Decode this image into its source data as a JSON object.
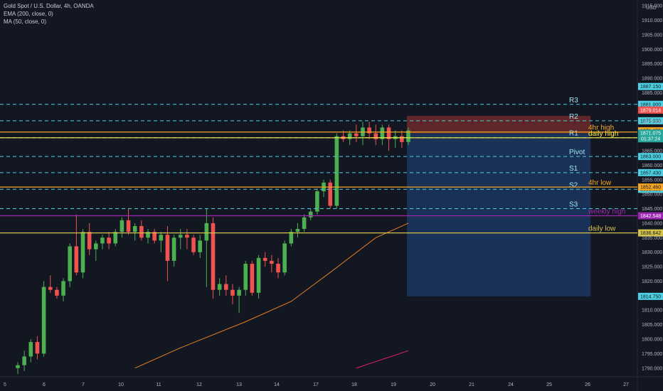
{
  "header": {
    "symbol_line": "Gold Spot / U.S. Dollar, 4h, OANDA",
    "indicator_1": "EMA (200, close, 0)",
    "indicator_2": "MA (50, close, 0)"
  },
  "colors": {
    "background": "#131722",
    "bull": "#26a69a",
    "bull_body": "#4caf50",
    "bear": "#ef5350",
    "pivot_dashed": "#4dd0e1",
    "orange": "#f5a623",
    "yellow": "#ffeb3b",
    "purple": "#9c27b0",
    "ema": "#e67e22",
    "ma": "#e91e63",
    "short_stop": "#7b2d2d",
    "short_target": "#1e3a66"
  },
  "chart_data": {
    "type": "candlestick",
    "title": "Gold Spot / U.S. Dollar, 4h, OANDA",
    "ylim": [
      1787,
      1917
    ],
    "y_ticks": [
      1790,
      1795,
      1800,
      1805,
      1810,
      1815,
      1820,
      1825,
      1830,
      1835,
      1840,
      1845,
      1850,
      1855,
      1860,
      1865,
      1870,
      1875,
      1880,
      1885,
      1890,
      1895,
      1900,
      1905,
      1910,
      1915
    ],
    "y_unit": "USD",
    "x_ticks": [
      "5",
      "6",
      "7",
      "10",
      "11",
      "12",
      "13",
      "14",
      "17",
      "18",
      "19",
      "20",
      "21",
      "24",
      "25",
      "26",
      "27"
    ],
    "candles": [
      [
        1790,
        1792,
        1788,
        1791
      ],
      [
        1791,
        1796,
        1789,
        1794
      ],
      [
        1794,
        1800,
        1792,
        1799
      ],
      [
        1799,
        1801,
        1793,
        1795
      ],
      [
        1795,
        1820,
        1794,
        1818
      ],
      [
        1818,
        1822,
        1816,
        1817
      ],
      [
        1817,
        1818,
        1814,
        1815
      ],
      [
        1815,
        1821,
        1813,
        1820
      ],
      [
        1820,
        1833,
        1818,
        1832
      ],
      [
        1832,
        1843,
        1822,
        1823
      ],
      [
        1823,
        1838,
        1821,
        1837
      ],
      [
        1837,
        1840,
        1829,
        1831
      ],
      [
        1831,
        1834,
        1827,
        1833
      ],
      [
        1833,
        1836,
        1831,
        1835
      ],
      [
        1835,
        1837,
        1831,
        1833
      ],
      [
        1833,
        1838,
        1832,
        1837
      ],
      [
        1837,
        1842,
        1835,
        1841
      ],
      [
        1841,
        1845,
        1836,
        1837
      ],
      [
        1837,
        1840,
        1834,
        1839
      ],
      [
        1839,
        1841,
        1834,
        1835
      ],
      [
        1835,
        1838,
        1833,
        1837
      ],
      [
        1837,
        1838,
        1833,
        1834
      ],
      [
        1834,
        1837,
        1830,
        1836
      ],
      [
        1836,
        1839,
        1820,
        1827
      ],
      [
        1827,
        1836,
        1825,
        1835
      ],
      [
        1835,
        1838,
        1831,
        1836
      ],
      [
        1836,
        1838,
        1831,
        1835
      ],
      [
        1835,
        1836,
        1829,
        1830
      ],
      [
        1830,
        1836,
        1828,
        1834
      ],
      [
        1834,
        1845,
        1818,
        1840
      ],
      [
        1840,
        1842,
        1814,
        1817
      ],
      [
        1817,
        1821,
        1815,
        1819
      ],
      [
        1819,
        1822,
        1815,
        1817
      ],
      [
        1817,
        1819,
        1812,
        1815
      ],
      [
        1815,
        1818,
        1809,
        1817
      ],
      [
        1817,
        1827,
        1815,
        1826
      ],
      [
        1826,
        1827,
        1815,
        1816
      ],
      [
        1816,
        1829,
        1814,
        1828
      ],
      [
        1828,
        1830,
        1825,
        1827
      ],
      [
        1827,
        1829,
        1823,
        1826
      ],
      [
        1826,
        1828,
        1821,
        1823
      ],
      [
        1823,
        1834,
        1822,
        1833
      ],
      [
        1833,
        1838,
        1832,
        1837
      ],
      [
        1837,
        1840,
        1835,
        1838
      ],
      [
        1838,
        1843,
        1837,
        1842
      ],
      [
        1842,
        1845,
        1841,
        1844
      ],
      [
        1844,
        1852,
        1843,
        1851
      ],
      [
        1851,
        1855,
        1849,
        1854
      ],
      [
        1854,
        1855,
        1845,
        1846
      ],
      [
        1846,
        1871,
        1845,
        1870
      ],
      [
        1870,
        1872,
        1868,
        1869
      ],
      [
        1869,
        1872,
        1867,
        1871
      ],
      [
        1871,
        1874,
        1868,
        1870
      ],
      [
        1870,
        1875,
        1867,
        1873
      ],
      [
        1873,
        1875,
        1869,
        1871
      ],
      [
        1871,
        1874,
        1867,
        1869
      ],
      [
        1869,
        1874,
        1867,
        1873
      ],
      [
        1873,
        1874,
        1865,
        1869
      ],
      [
        1869,
        1872,
        1866,
        1870
      ],
      [
        1870,
        1872,
        1866,
        1868
      ],
      [
        1868,
        1873,
        1867,
        1872
      ]
    ],
    "levels": [
      {
        "label": "R3",
        "price": 1881.0,
        "tag": "1881.000",
        "kind": "dashed",
        "color": "#4dd0e1"
      },
      {
        "label": "R2",
        "price": 1875.33,
        "tag": "1875.330",
        "kind": "dashed",
        "color": "#4dd0e1"
      },
      {
        "label": "R1",
        "price": 1869.5,
        "tag": "1869.500",
        "kind": "dashed",
        "color": "#4dd0e1"
      },
      {
        "label": "Pivot",
        "price": 1863.0,
        "tag": "1863.000",
        "kind": "dashed",
        "color": "#4dd0e1"
      },
      {
        "label": "S1",
        "price": 1857.43,
        "tag": "1857.430",
        "kind": "dashed",
        "color": "#4dd0e1"
      },
      {
        "label": "S2",
        "price": 1851.69,
        "tag": "1851.690",
        "kind": "dashed",
        "color": "#4dd0e1"
      },
      {
        "label": "S3",
        "price": 1845.0,
        "tag": "",
        "kind": "dashed",
        "color": "#4dd0e1"
      },
      {
        "label": "4hr high",
        "price": 1871.447,
        "tag": "1871.447",
        "kind": "solid",
        "color": "#f5a623"
      },
      {
        "label": "daily high",
        "price": 1869.465,
        "tag": "1869.465",
        "kind": "solid",
        "color": "#ffeb3b"
      },
      {
        "label": "4hr low",
        "price": 1852.46,
        "tag": "1852.460",
        "kind": "solid",
        "color": "#f5a623"
      },
      {
        "label": "weekly high",
        "price": 1842.548,
        "tag": "1842.548",
        "kind": "solid",
        "color": "#9c27b0"
      },
      {
        "label": "daily low",
        "price": 1836.642,
        "tag": "1836.642",
        "kind": "solid",
        "color": "#d4c24a"
      }
    ],
    "price_tags": [
      {
        "price": 1887.15,
        "text": "1887.150",
        "bg": "#4dd0e1",
        "fg": "#131722"
      },
      {
        "price": 1879.014,
        "text": "1879.014",
        "bg": "#ef5350",
        "fg": "#ffffff"
      },
      {
        "price": 1871.875,
        "text": "1871.875",
        "bg": "#f5a623",
        "fg": "#131722"
      },
      {
        "price": 1871.075,
        "text": "1871.075",
        "bg": "#26a69a",
        "fg": "#ffffff",
        "sub": "01:37:24"
      },
      {
        "price": 1814.75,
        "text": "1814.750",
        "bg": "#4dd0e1",
        "fg": "#131722"
      }
    ],
    "position": {
      "entry": 1871.0,
      "stop": 1877.0,
      "target": 1814.75,
      "start_index": 60,
      "end_index": 88
    },
    "ema_200": [
      [
        18,
        1790.0
      ],
      [
        25,
        1797.0
      ],
      [
        35,
        1806.0
      ],
      [
        42,
        1813.0
      ],
      [
        48,
        1823.0
      ],
      [
        55,
        1835.0
      ],
      [
        60,
        1840.0
      ]
    ],
    "ma_50": [
      [
        52,
        1790.0
      ],
      [
        60,
        1796.0
      ]
    ]
  }
}
